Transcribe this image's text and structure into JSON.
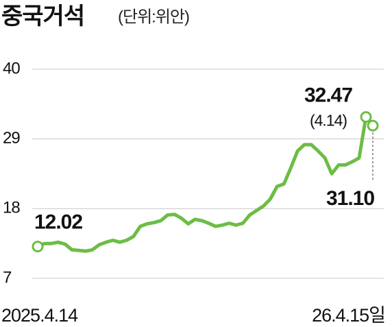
{
  "chart_data": {
    "type": "line",
    "title": "중국거석",
    "subtitle": "(단위:위안)",
    "categories": [
      "2025.4.14",
      null,
      null,
      null,
      null,
      null,
      null,
      null,
      null,
      null,
      null,
      null,
      null,
      null,
      null,
      null,
      null,
      null,
      null,
      null,
      null,
      null,
      null,
      null,
      null,
      null,
      null,
      null,
      null,
      null,
      null,
      null,
      null,
      null,
      null,
      null,
      null,
      null,
      null,
      null,
      null,
      null,
      null,
      null,
      null,
      null,
      null,
      null,
      null,
      "26.4.15일"
    ],
    "values": [
      12.02,
      12.5,
      12.5,
      12.7,
      12.4,
      11.5,
      11.4,
      11.3,
      11.5,
      12.3,
      12.7,
      13.0,
      12.7,
      13.0,
      13.6,
      15.2,
      15.6,
      15.8,
      16.1,
      17.0,
      17.1,
      16.5,
      15.6,
      16.3,
      16.1,
      15.7,
      15.2,
      15.4,
      15.7,
      15.4,
      15.7,
      17.0,
      17.7,
      18.4,
      19.5,
      21.5,
      21.9,
      24.4,
      27.1,
      28.1,
      28.1,
      27.1,
      26.0,
      23.5,
      24.9,
      24.9,
      25.4,
      26.0,
      32.47,
      31.1
    ],
    "value_labels": [
      "12.02",
      null,
      null,
      null,
      null,
      null,
      null,
      null,
      null,
      null,
      null,
      null,
      null,
      null,
      null,
      null,
      null,
      null,
      null,
      null,
      null,
      null,
      null,
      null,
      null,
      null,
      null,
      null,
      null,
      null,
      null,
      null,
      null,
      null,
      null,
      null,
      null,
      null,
      null,
      null,
      null,
      null,
      null,
      null,
      null,
      null,
      null,
      null,
      "32.47",
      "31.10"
    ],
    "annotation": "(4.14)",
    "color": "#6cbd45",
    "ylim": [
      7,
      40
    ],
    "yticks": [
      7,
      18,
      29,
      40
    ],
    "grid": true
  }
}
